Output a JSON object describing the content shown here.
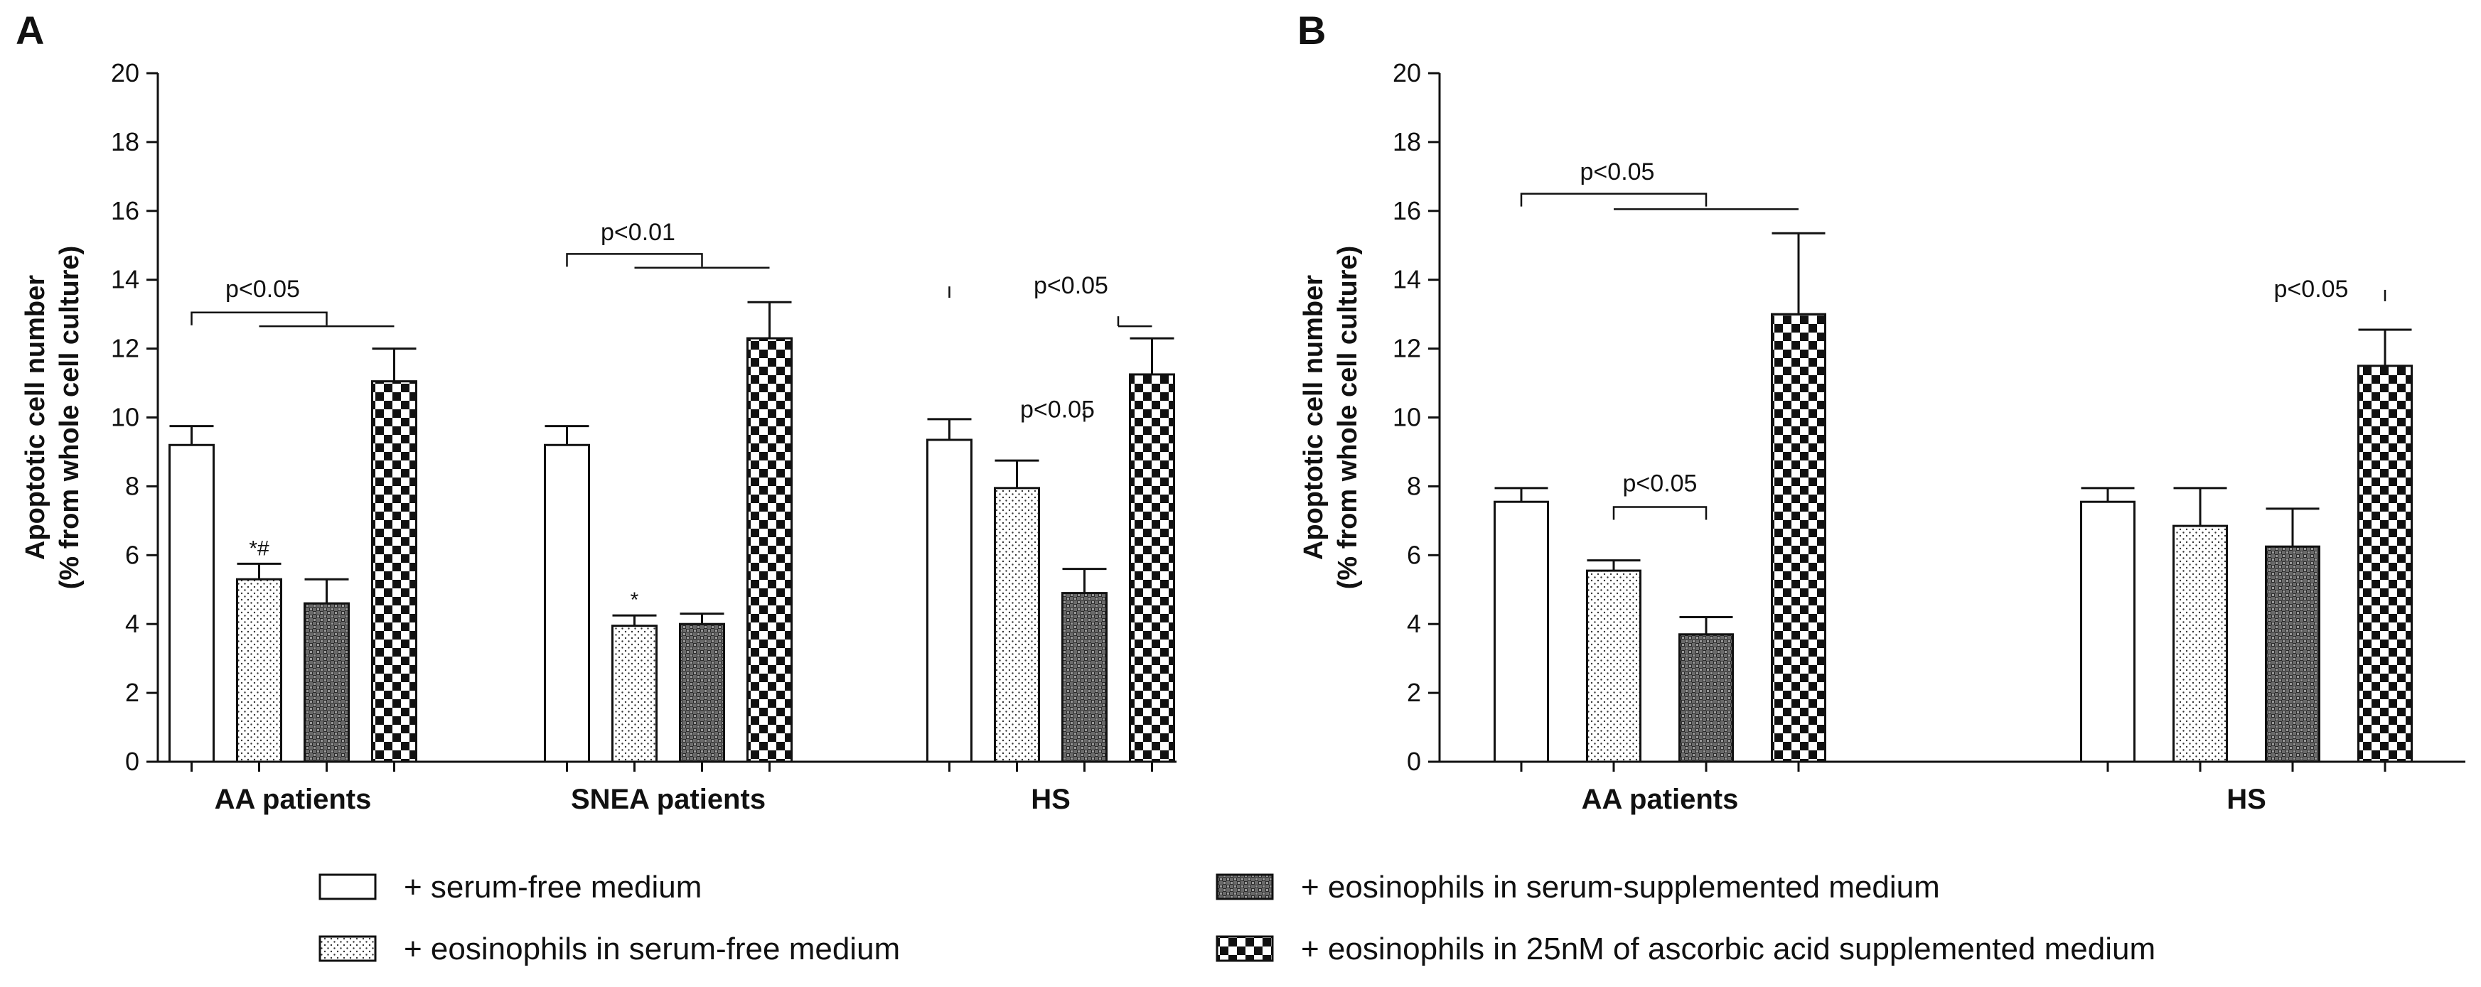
{
  "chart_data": [
    {
      "type": "bar",
      "panel": "A",
      "ylabel_lines": [
        "Apoptotic cell number",
        "(% from whole cell culture)"
      ],
      "ylim": [
        0,
        20
      ],
      "yticks": [
        0,
        2,
        4,
        6,
        8,
        10,
        12,
        14,
        16,
        18,
        20
      ],
      "categories": [
        "AA patients",
        "SNEA patients",
        "HS"
      ],
      "series": [
        {
          "name": "+ serum-free medium",
          "pattern": "blank",
          "values": [
            9.2,
            9.2,
            9.35
          ],
          "errors": [
            0.55,
            0.55,
            0.6
          ]
        },
        {
          "name": "+ eosinophils in serum-free medium",
          "pattern": "dots",
          "values": [
            5.3,
            3.95,
            7.95
          ],
          "errors": [
            0.45,
            0.3,
            0.8
          ]
        },
        {
          "name": "+ eosinophils in serum-supplemented medium",
          "pattern": "grid",
          "values": [
            4.6,
            4.0,
            4.9
          ],
          "errors": [
            0.7,
            0.3,
            0.7
          ]
        },
        {
          "name": "+ eosinophils in 25nM of ascorbic acid supplemented medium",
          "pattern": "checker",
          "values": [
            11.05,
            12.3,
            11.25
          ],
          "errors": [
            0.95,
            1.05,
            1.05
          ]
        }
      ],
      "bar_annotations": [
        {
          "text": "*#",
          "category": 0,
          "series": 1
        },
        {
          "text": "*",
          "category": 1,
          "series": 1
        }
      ],
      "significance": [
        {
          "text": "p<0.05",
          "category": 0,
          "y": 13.05,
          "from_series": 0,
          "to_series": 2,
          "to_y": 12.65,
          "to_series_end": 3,
          "label_y": 13.5
        },
        {
          "text": "p<0.01",
          "category": 1,
          "y": 14.75,
          "from_series": 0,
          "to_series": 2,
          "to_y": 14.35,
          "to_series_end": 3,
          "label_y": 15.15
        },
        {
          "text": "p<0.05",
          "category": 2,
          "label_series": 1.8,
          "label_y": 13.6,
          "tick_a_series": 0,
          "tick_b_series": 2.5,
          "to_y": 12.65,
          "to_series_end": 3
        },
        {
          "text": "p<0.05",
          "category": 2,
          "label_series": 1.6,
          "label_y": 10.0,
          "tick_a_series": 2
        }
      ]
    },
    {
      "type": "bar",
      "panel": "B",
      "ylabel_lines": [
        "Apoptotic cell number",
        "(% from whole cell culture)"
      ],
      "ylim": [
        0,
        20
      ],
      "yticks": [
        0,
        2,
        4,
        6,
        8,
        10,
        12,
        14,
        16,
        18,
        20
      ],
      "categories": [
        "AA patients",
        "HS"
      ],
      "series": [
        {
          "name": "+ serum-free medium",
          "pattern": "blank",
          "values": [
            7.55,
            7.55
          ],
          "errors": [
            0.4,
            0.4
          ]
        },
        {
          "name": "+ eosinophils in serum-free medium",
          "pattern": "dots",
          "values": [
            5.55,
            6.85
          ],
          "errors": [
            0.3,
            1.1
          ]
        },
        {
          "name": "+ eosinophils in serum-supplemented medium",
          "pattern": "grid",
          "values": [
            3.7,
            6.25
          ],
          "errors": [
            0.5,
            1.1
          ]
        },
        {
          "name": "+ eosinophils in 25nM of ascorbic acid supplemented medium",
          "pattern": "checker",
          "values": [
            13.0,
            11.5
          ],
          "errors": [
            2.35,
            1.05
          ]
        }
      ],
      "bar_annotations": [],
      "significance": [
        {
          "text": "p<0.05",
          "category": 0,
          "y": 16.5,
          "from_series": 0,
          "to_series": 2,
          "to_y": 16.05,
          "to_series_end": 3,
          "label_y": 16.9
        },
        {
          "text": "p<0.05",
          "category": 0,
          "y": 7.4,
          "from_series": 1,
          "to_series": 2,
          "label_y": 7.85,
          "bracket_down": true
        },
        {
          "text": "p<0.05",
          "category": 1,
          "label_series": 2.2,
          "label_y": 13.5,
          "tick_a_series": 3
        }
      ]
    }
  ],
  "legend": {
    "items": [
      {
        "label": "+ serum-free medium",
        "pattern": "blank"
      },
      {
        "label": "+ eosinophils in serum-free medium",
        "pattern": "dots"
      },
      {
        "label": "+ eosinophils in serum-supplemented medium",
        "pattern": "grid"
      },
      {
        "label": "+ eosinophils in 25nM of ascorbic acid supplemented medium",
        "pattern": "checker"
      }
    ]
  }
}
